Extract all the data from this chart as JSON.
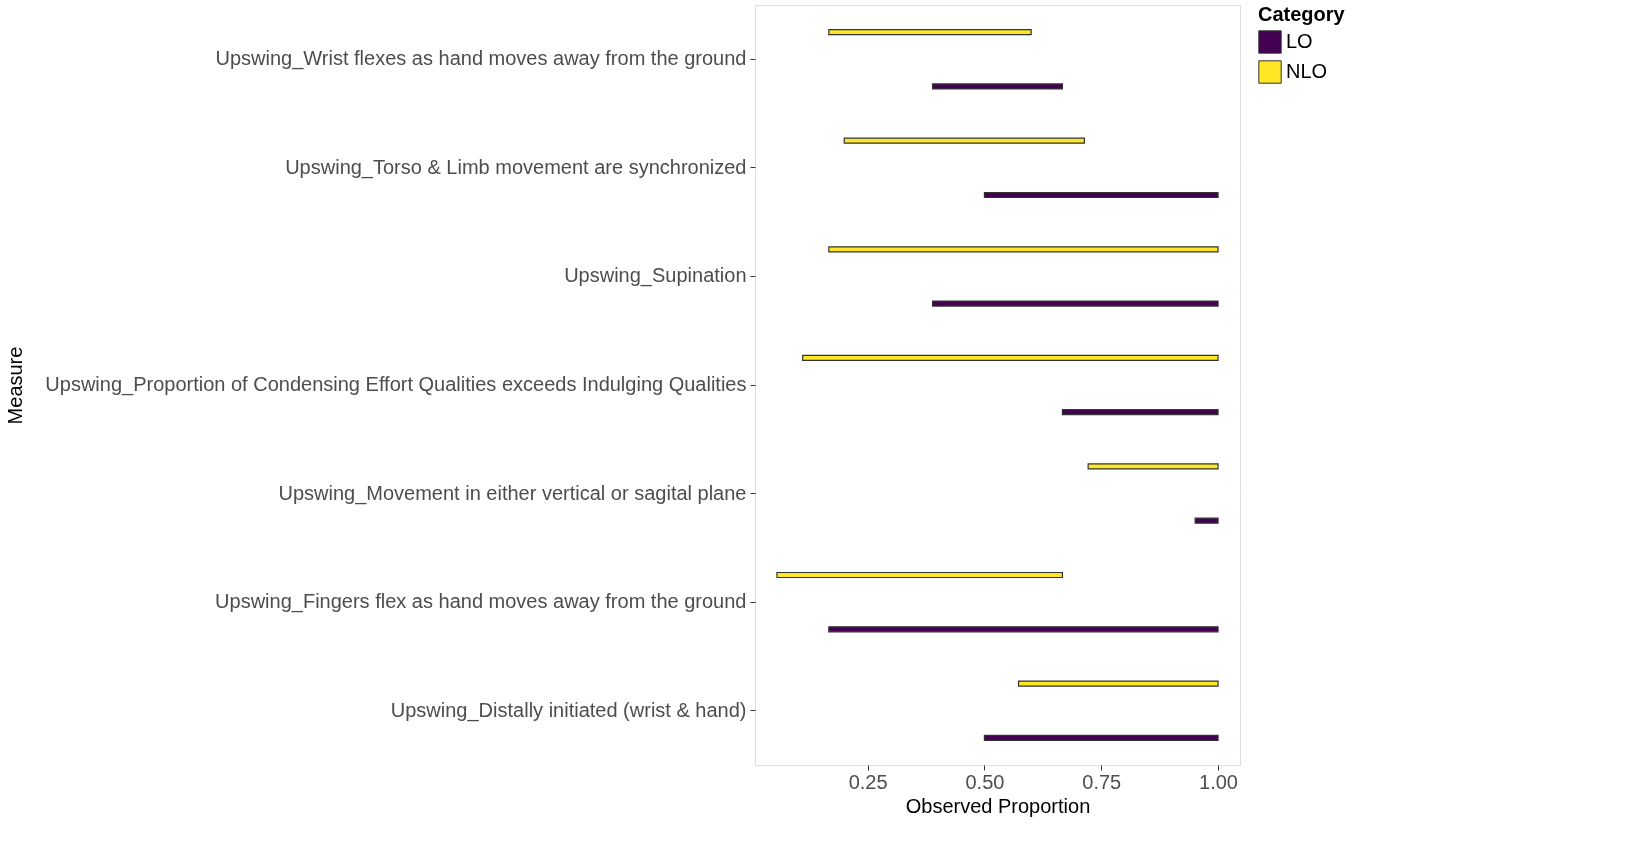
{
  "chart_data": {
    "type": "bar",
    "orientation": "horizontal",
    "xlabel": "Observed Proportion",
    "ylabel": "Measure",
    "legend_title": "Category",
    "legend": "right",
    "grid": true,
    "categories": [
      "Upswing_Wrist flexes as hand moves away from the ground",
      "Upswing_Torso & Limb movement are synchronized",
      "Upswing_Supination",
      "Upswing_Proportion of Condensing Effort Qualities exceeds Indulging Qualities",
      "Upswing_Movement in either vertical or sagital plane",
      "Upswing_Fingers flex as hand moves away from the ground",
      "Upswing_Distally initiated (wrist & hand)"
    ],
    "series": [
      {
        "name": "LO",
        "color": "#440154",
        "base": [
          0.389,
          0.5,
          0.389,
          0.667,
          0.951,
          0.167,
          0.5
        ],
        "values": [
          0.278,
          0.5,
          0.611,
          0.333,
          0.049,
          0.833,
          0.5
        ]
      },
      {
        "name": "NLO",
        "color": "#fde725",
        "base": [
          0.167,
          0.2,
          0.167,
          0.111,
          0.722,
          0.056,
          0.573
        ],
        "values": [
          0.433,
          0.514,
          0.833,
          0.889,
          0.278,
          0.611,
          0.427
        ]
      }
    ],
    "xlim": [
      0.009,
      1.047
    ],
    "xticks": [
      {
        "value": 0.25,
        "label": "0.25"
      },
      {
        "value": 0.5,
        "label": "0.50"
      },
      {
        "value": 0.75,
        "label": "0.75"
      },
      {
        "value": 1.0,
        "label": "1.00"
      }
    ]
  }
}
